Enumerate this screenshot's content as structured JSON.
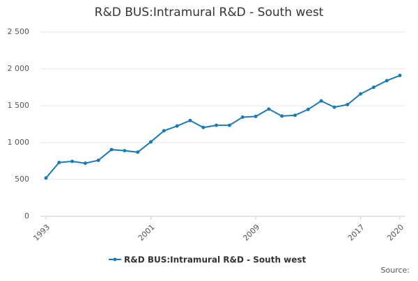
{
  "chart_data": {
    "type": "line",
    "title": "R&D BUS:Intramural R&D - South west",
    "x": [
      1993,
      1994,
      1995,
      1996,
      1997,
      1998,
      1999,
      2000,
      2001,
      2002,
      2003,
      2004,
      2005,
      2006,
      2007,
      2008,
      2009,
      2010,
      2011,
      2012,
      2013,
      2014,
      2015,
      2016,
      2017,
      2018,
      2019,
      2020
    ],
    "series": [
      {
        "name": "R&D BUS:Intramural R&D - South west",
        "color": "#1a7ab5",
        "values": [
          520,
          730,
          745,
          720,
          760,
          905,
          890,
          870,
          1010,
          1160,
          1225,
          1300,
          1205,
          1235,
          1235,
          1345,
          1355,
          1455,
          1360,
          1370,
          1450,
          1565,
          1480,
          1515,
          1660,
          1750,
          1840,
          1910
        ]
      }
    ],
    "xlim": [
      1993,
      2020
    ],
    "xticks": [
      1993,
      2001,
      2009,
      2017,
      2020
    ],
    "ylim": [
      0,
      2500
    ],
    "yticks": [
      0,
      500,
      {
        "value": 1000,
        "label": "1 000"
      },
      {
        "value": 1500,
        "label": "1 500"
      },
      {
        "value": 2000,
        "label": "2 000"
      },
      {
        "value": 2500,
        "label": "2 500"
      }
    ],
    "grid": true,
    "source": "Source:"
  }
}
